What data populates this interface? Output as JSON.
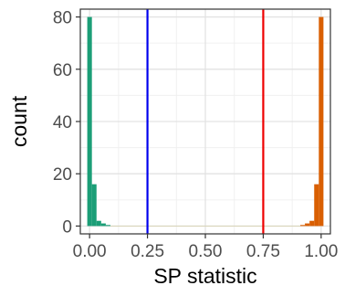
{
  "chart_data": {
    "type": "histogram",
    "xlabel": "SP statistic",
    "ylabel": "count",
    "xlim": [
      -0.04,
      1.04
    ],
    "ylim": [
      -3,
      83
    ],
    "x_ticks": [
      "0.00",
      "0.25",
      "0.50",
      "0.75",
      "1.00"
    ],
    "x_tick_values": [
      0,
      0.25,
      0.5,
      0.75,
      1
    ],
    "y_ticks": [
      "0",
      "20",
      "40",
      "60",
      "80"
    ],
    "y_tick_values": [
      0,
      20,
      40,
      60,
      80
    ],
    "grid": true,
    "bin_width": 0.02,
    "series": [
      {
        "color": "#1b9e77",
        "bins": [
          {
            "x0": -0.01,
            "x1": 0.01,
            "count": 80
          },
          {
            "x0": 0.01,
            "x1": 0.03,
            "count": 16
          },
          {
            "x0": 0.03,
            "x1": 0.05,
            "count": 2
          },
          {
            "x0": 0.05,
            "x1": 0.07,
            "count": 1
          },
          {
            "x0": 0.07,
            "x1": 0.09,
            "count": 0.4
          }
        ]
      },
      {
        "color": "#d95f02",
        "bins": [
          {
            "x0": 0.91,
            "x1": 0.93,
            "count": 0.4
          },
          {
            "x0": 0.93,
            "x1": 0.95,
            "count": 1
          },
          {
            "x0": 0.95,
            "x1": 0.97,
            "count": 2
          },
          {
            "x0": 0.97,
            "x1": 0.99,
            "count": 16
          },
          {
            "x0": 0.99,
            "x1": 1.01,
            "count": 80
          }
        ]
      },
      {
        "color": "#d8d2b0",
        "bins": [
          {
            "x0": 0.09,
            "x1": 0.91,
            "count": 0.15
          }
        ]
      }
    ],
    "vlines": [
      {
        "x": 0.25,
        "color": "#0000ee"
      },
      {
        "x": 0.75,
        "color": "#ee0000"
      }
    ]
  }
}
